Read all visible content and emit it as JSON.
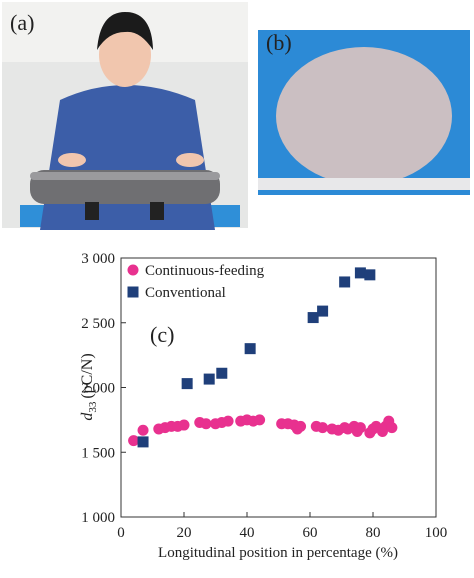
{
  "panels": {
    "a": "(a)",
    "b": "(b)"
  },
  "chart_data": {
    "type": "scatter",
    "panel_label": "(c)",
    "x_label": "Longitudinal position in percentage (%)",
    "y_label": {
      "symbol": "d",
      "subscript": "33",
      "unit": "(pC/N)"
    },
    "xlim": [
      0,
      100
    ],
    "xticks": [
      0,
      20,
      40,
      60,
      80,
      100
    ],
    "ylim": [
      1000,
      3000
    ],
    "yticks": [
      {
        "value": 1000,
        "label": "1 000"
      },
      {
        "value": 1500,
        "label": "1 500"
      },
      {
        "value": 2000,
        "label": "2 000"
      },
      {
        "value": 2500,
        "label": "2 500"
      },
      {
        "value": 3000,
        "label": "3 000"
      }
    ],
    "legend": "upper left",
    "series": [
      {
        "name": "Continuous-feeding",
        "color": "#e8318f",
        "marker": "circle",
        "x": [
          4,
          7,
          12,
          14,
          16,
          18,
          20,
          25,
          27,
          30,
          32,
          34,
          38,
          40,
          42,
          44,
          51,
          53,
          55,
          56,
          57,
          62,
          64,
          67,
          69,
          71,
          72,
          74,
          75,
          76,
          79,
          80,
          81,
          83,
          84,
          85,
          86
        ],
        "values": [
          1590,
          1670,
          1680,
          1690,
          1700,
          1700,
          1710,
          1730,
          1720,
          1720,
          1730,
          1740,
          1740,
          1750,
          1740,
          1750,
          1720,
          1720,
          1710,
          1680,
          1700,
          1700,
          1690,
          1680,
          1670,
          1690,
          1680,
          1700,
          1660,
          1690,
          1650,
          1680,
          1700,
          1660,
          1700,
          1740,
          1690
        ]
      },
      {
        "name": "Conventional",
        "color": "#1f3f7a",
        "marker": "square",
        "x": [
          7,
          21,
          28,
          32,
          41,
          61,
          64,
          71,
          76,
          79
        ],
        "values": [
          1580,
          2030,
          2065,
          2110,
          2300,
          2540,
          2590,
          2815,
          2885,
          2870
        ]
      }
    ]
  }
}
